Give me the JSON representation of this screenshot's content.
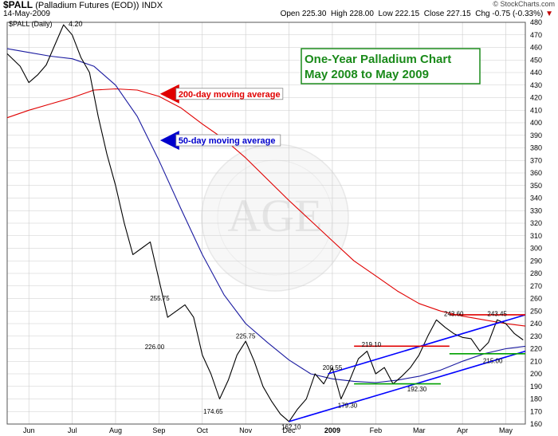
{
  "header": {
    "symbol": "$PALL",
    "name": "(Palladium Futures (EOD))",
    "exchange": "INDX",
    "date": "14-May-2009",
    "credit": "© StockCharts.com",
    "open": "Open 225.30",
    "high": "High 228.00",
    "low": "Low 222.15",
    "close": "Close 227.15",
    "chg": "Chg -0.75 (-0.33%)",
    "chg_marker": "▼",
    "series_label": "$PALL (Daily)",
    "series_value": "4.20"
  },
  "colors": {
    "price": "#000000",
    "ma200": "#e00000",
    "ma50": "#1a1aa0",
    "channel": "#0000ff",
    "resistance": "#e00000",
    "support": "#00a000",
    "title_box": "#1a8a1a",
    "grid": "#cccccc"
  },
  "chart_data": {
    "type": "line",
    "title": "One-Year Palladium Chart",
    "subtitle": "May 2008 to May 2009",
    "ylim": [
      160,
      480
    ],
    "yticks": [
      160,
      170,
      180,
      190,
      200,
      210,
      220,
      230,
      240,
      250,
      260,
      270,
      280,
      290,
      300,
      310,
      320,
      330,
      340,
      350,
      360,
      370,
      380,
      390,
      400,
      410,
      420,
      430,
      440,
      450,
      460,
      470,
      480
    ],
    "x_tick_labels": [
      "Jun",
      "Jul",
      "Aug",
      "Sep",
      "Oct",
      "Nov",
      "Dec",
      "2009",
      "Feb",
      "Mar",
      "Apr",
      "May"
    ],
    "x_tick_pos": [
      0.5,
      1.5,
      2.5,
      3.5,
      4.5,
      5.5,
      6.5,
      7.5,
      8.5,
      9.5,
      10.5,
      11.5
    ],
    "x_range": [
      0,
      11.95
    ],
    "series": [
      {
        "name": "$PALL (Daily)",
        "x": [
          0,
          0.3,
          0.5,
          0.7,
          0.9,
          1.1,
          1.3,
          1.5,
          1.7,
          1.9,
          2.1,
          2.3,
          2.5,
          2.7,
          2.9,
          3.1,
          3.3,
          3.5,
          3.7,
          3.9,
          4.1,
          4.3,
          4.5,
          4.7,
          4.9,
          5.1,
          5.3,
          5.5,
          5.7,
          5.9,
          6.1,
          6.3,
          6.5,
          6.7,
          6.9,
          7.1,
          7.3,
          7.5,
          7.7,
          7.9,
          8.1,
          8.3,
          8.5,
          8.7,
          8.9,
          9.1,
          9.3,
          9.5,
          9.7,
          9.9,
          10.1,
          10.3,
          10.5,
          10.7,
          10.9,
          11.1,
          11.3,
          11.5,
          11.7,
          11.9
        ],
        "values": [
          455,
          445,
          432,
          438,
          446,
          462,
          478,
          470,
          452,
          440,
          405,
          375,
          350,
          320,
          295,
          300,
          305,
          275,
          245,
          250,
          255,
          245,
          215,
          200,
          180,
          195,
          215,
          226,
          210,
          190,
          178,
          168,
          162,
          172,
          180,
          200,
          192,
          205,
          180,
          195,
          212,
          218,
          200,
          205,
          192,
          198,
          205,
          215,
          230,
          243,
          237,
          232,
          229,
          228,
          218,
          225,
          243,
          240,
          232,
          227
        ]
      },
      {
        "name": "200-day moving average",
        "x": [
          0,
          0.5,
          1.0,
          1.5,
          2.0,
          2.5,
          3.0,
          3.5,
          4.0,
          4.5,
          5.0,
          5.5,
          6.0,
          6.5,
          7.0,
          7.5,
          8.0,
          8.5,
          9.0,
          9.5,
          10.0,
          10.5,
          11.0,
          11.5,
          11.95
        ],
        "values": [
          404,
          410,
          415,
          420,
          426,
          427,
          426,
          421,
          412,
          399,
          387,
          372,
          355,
          338,
          322,
          306,
          290,
          278,
          266,
          256,
          250,
          246,
          243,
          240,
          238
        ]
      },
      {
        "name": "50-day moving average",
        "x": [
          0,
          0.5,
          1.0,
          1.5,
          2.0,
          2.5,
          3.0,
          3.5,
          4.0,
          4.5,
          5.0,
          5.5,
          6.0,
          6.5,
          7.0,
          7.5,
          8.0,
          8.5,
          9.0,
          9.5,
          10.0,
          10.5,
          11.0,
          11.5,
          11.95
        ],
        "values": [
          459,
          456,
          453,
          451,
          445,
          430,
          405,
          370,
          332,
          295,
          263,
          240,
          225,
          211,
          200,
          196,
          194,
          193,
          195,
          198,
          203,
          210,
          216,
          220,
          222
        ]
      }
    ],
    "annotations": [
      {
        "x": 3.52,
        "y": 255.75,
        "label": "255.75",
        "pos": "above"
      },
      {
        "x": 3.4,
        "y": 226.0,
        "label": "226.00",
        "pos": "below"
      },
      {
        "x": 5.5,
        "y": 225.75,
        "label": "225.75",
        "pos": "above"
      },
      {
        "x": 4.75,
        "y": 174.65,
        "label": "174.65",
        "pos": "below"
      },
      {
        "x": 6.55,
        "y": 162.1,
        "label": "162.10",
        "pos": "below"
      },
      {
        "x": 7.5,
        "y": 200.55,
        "label": "200.55",
        "pos": "above"
      },
      {
        "x": 7.85,
        "y": 179.3,
        "label": "179.30",
        "pos": "below"
      },
      {
        "x": 8.4,
        "y": 219.1,
        "label": "219.10",
        "pos": "above"
      },
      {
        "x": 9.45,
        "y": 192.3,
        "label": "192.30",
        "pos": "below"
      },
      {
        "x": 10.3,
        "y": 243.6,
        "label": "243.60",
        "pos": "above"
      },
      {
        "x": 11.3,
        "y": 243.45,
        "label": "243.45",
        "pos": "above"
      },
      {
        "x": 11.2,
        "y": 215.0,
        "label": "215.00",
        "pos": "below"
      }
    ],
    "channel_lines": [
      {
        "x1": 6.5,
        "y1": 162,
        "x2": 11.95,
        "y2": 218
      },
      {
        "x1": 7.4,
        "y1": 200,
        "x2": 11.95,
        "y2": 247
      }
    ],
    "resistance_lines": [
      {
        "x1": 8.0,
        "y1": 222,
        "x2": 10.2,
        "y2": 222
      },
      {
        "x1": 10.2,
        "y1": 247,
        "x2": 11.95,
        "y2": 247
      }
    ],
    "support_lines": [
      {
        "x1": 8.0,
        "y1": 192,
        "x2": 10.0,
        "y2": 192
      },
      {
        "x1": 10.2,
        "y1": 216,
        "x2": 11.95,
        "y2": 216
      }
    ],
    "callouts": [
      {
        "label": "200-day moving average",
        "color": "#e00000",
        "arrow_x": 3.6,
        "arrow_y": 423
      },
      {
        "label": "50-day moving average",
        "color": "#0000cc",
        "arrow_x": 3.6,
        "arrow_y": 386
      }
    ],
    "watermark": "AGE"
  }
}
